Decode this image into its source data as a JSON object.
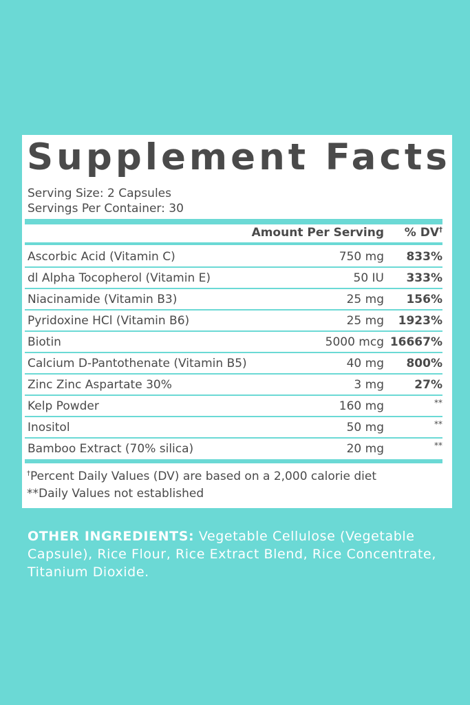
{
  "title": "Supplement Facts",
  "serving_size": "Serving Size: 2 Capsules",
  "servings_per_container": "Servings Per Container: 30",
  "header": {
    "amount": "Amount Per Serving",
    "dv": "% DV",
    "dv_mark": "†"
  },
  "rows": [
    [
      "Ascorbic Acid (Vitamin C)",
      "750 mg",
      "833%"
    ],
    [
      "dl Alpha Tocopherol (Vitamin E)",
      "50 IU",
      "333%"
    ],
    [
      "Niacinamide (Vitamin B3)",
      "25 mg",
      "156%"
    ],
    [
      "Pyridoxine HCl (Vitamin B6)",
      "25 mg",
      "1923%"
    ],
    [
      "Biotin",
      "5000 mcg",
      "16667%"
    ],
    [
      "Calcium D-Pantothenate (Vitamin B5)",
      "40 mg",
      "800%"
    ],
    [
      "Zinc Zinc Aspartate 30%",
      "3 mg",
      "27%"
    ],
    [
      "Kelp Powder",
      "160 mg",
      "**"
    ],
    [
      "Inositol",
      "50 mg",
      "**"
    ],
    [
      "Bamboo Extract (70% silica)",
      "20 mg",
      "**"
    ]
  ],
  "footnotes": {
    "mark": "†",
    "dv_note": "Percent Daily Values (DV) are based on a 2,000 calorie diet",
    "not_established": "**Daily Values not established"
  },
  "other_ingredients": {
    "label": "OTHER INGREDIENTS:",
    "text": "Vegetable Cellulose (Vegetable Capsule), Rice Flour, Rice Extract Blend, Rice Concentrate, Titanium Dioxide."
  }
}
